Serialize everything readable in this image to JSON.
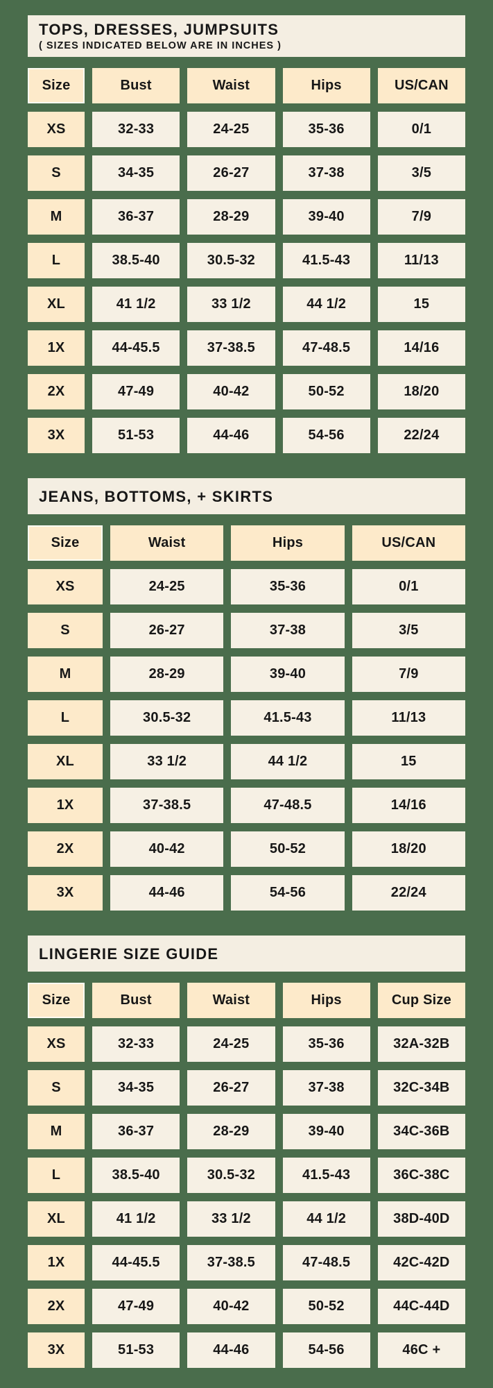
{
  "colors": {
    "background_green": "#4a6d4c",
    "banner_cream": "#f4eee2",
    "header_peach": "#fdeaca",
    "size_column_peach": "#fdeaca",
    "value_cell_offwhite": "#f6f0e4",
    "text_dark": "#171717"
  },
  "chart_data": [
    {
      "type": "table",
      "title": "TOPS, DRESSES, JUMPSUITS",
      "subtitle": "( SIZES INDICATED BELOW ARE IN INCHES )",
      "columns": [
        "Size",
        "Bust",
        "Waist",
        "Hips",
        "US/CAN"
      ],
      "rows": [
        [
          "XS",
          "32-33",
          "24-25",
          "35-36",
          "0/1"
        ],
        [
          "S",
          "34-35",
          "26-27",
          "37-38",
          "3/5"
        ],
        [
          "M",
          "36-37",
          "28-29",
          "39-40",
          "7/9"
        ],
        [
          "L",
          "38.5-40",
          "30.5-32",
          "41.5-43",
          "11/13"
        ],
        [
          "XL",
          "41 1/2",
          "33 1/2",
          "44 1/2",
          "15"
        ],
        [
          "1X",
          "44-45.5",
          "37-38.5",
          "47-48.5",
          "14/16"
        ],
        [
          "2X",
          "47-49",
          "40-42",
          "50-52",
          "18/20"
        ],
        [
          "3X",
          "51-53",
          "44-46",
          "54-56",
          "22/24"
        ]
      ]
    },
    {
      "type": "table",
      "title": "JEANS, BOTTOMS, + SKIRTS",
      "subtitle": "",
      "columns": [
        "Size",
        "Waist",
        "Hips",
        "US/CAN"
      ],
      "rows": [
        [
          "XS",
          "24-25",
          "35-36",
          "0/1"
        ],
        [
          "S",
          "26-27",
          "37-38",
          "3/5"
        ],
        [
          "M",
          "28-29",
          "39-40",
          "7/9"
        ],
        [
          "L",
          "30.5-32",
          "41.5-43",
          "11/13"
        ],
        [
          "XL",
          "33 1/2",
          "44 1/2",
          "15"
        ],
        [
          "1X",
          "37-38.5",
          "47-48.5",
          "14/16"
        ],
        [
          "2X",
          "40-42",
          "50-52",
          "18/20"
        ],
        [
          "3X",
          "44-46",
          "54-56",
          "22/24"
        ]
      ]
    },
    {
      "type": "table",
      "title": "LINGERIE SIZE GUIDE",
      "subtitle": "",
      "columns": [
        "Size",
        "Bust",
        "Waist",
        "Hips",
        "Cup Size"
      ],
      "rows": [
        [
          "XS",
          "32-33",
          "24-25",
          "35-36",
          "32A-32B"
        ],
        [
          "S",
          "34-35",
          "26-27",
          "37-38",
          "32C-34B"
        ],
        [
          "M",
          "36-37",
          "28-29",
          "39-40",
          "34C-36B"
        ],
        [
          "L",
          "38.5-40",
          "30.5-32",
          "41.5-43",
          "36C-38C"
        ],
        [
          "XL",
          "41 1/2",
          "33 1/2",
          "44 1/2",
          "38D-40D"
        ],
        [
          "1X",
          "44-45.5",
          "37-38.5",
          "47-48.5",
          "42C-42D"
        ],
        [
          "2X",
          "47-49",
          "40-42",
          "50-52",
          "44C-44D"
        ],
        [
          "3X",
          "51-53",
          "44-46",
          "54-56",
          "46C +"
        ]
      ]
    }
  ]
}
